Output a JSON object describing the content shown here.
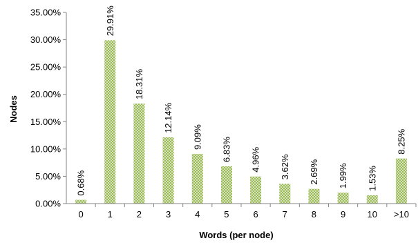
{
  "chart_data": {
    "type": "bar",
    "title": "",
    "xlabel": "Words (per node)",
    "ylabel": "Nodes",
    "categories": [
      "0",
      "1",
      "2",
      "3",
      "4",
      "5",
      "6",
      "7",
      "8",
      "9",
      "10",
      ">10"
    ],
    "values": [
      0.68,
      29.91,
      18.31,
      12.14,
      9.09,
      6.83,
      4.96,
      3.62,
      2.69,
      1.99,
      1.53,
      8.25
    ],
    "data_labels": [
      "0.68%",
      "29.91%",
      "18.31%",
      "12.14%",
      "9.09%",
      "6.83%",
      "4.96%",
      "3.62%",
      "2.69%",
      "1.99%",
      "1.53%",
      "8.25%"
    ],
    "ylim": [
      0,
      35
    ],
    "yticks": [
      0,
      5,
      10,
      15,
      20,
      25,
      30,
      35
    ],
    "ytick_labels": [
      "0.00%",
      "5.00%",
      "10.00%",
      "15.00%",
      "20.00%",
      "25.00%",
      "30.00%",
      "35.00%"
    ],
    "grid": false,
    "legend": "none",
    "bar_color": "#9bbb59",
    "bar_pattern_color": "#ffffff"
  }
}
